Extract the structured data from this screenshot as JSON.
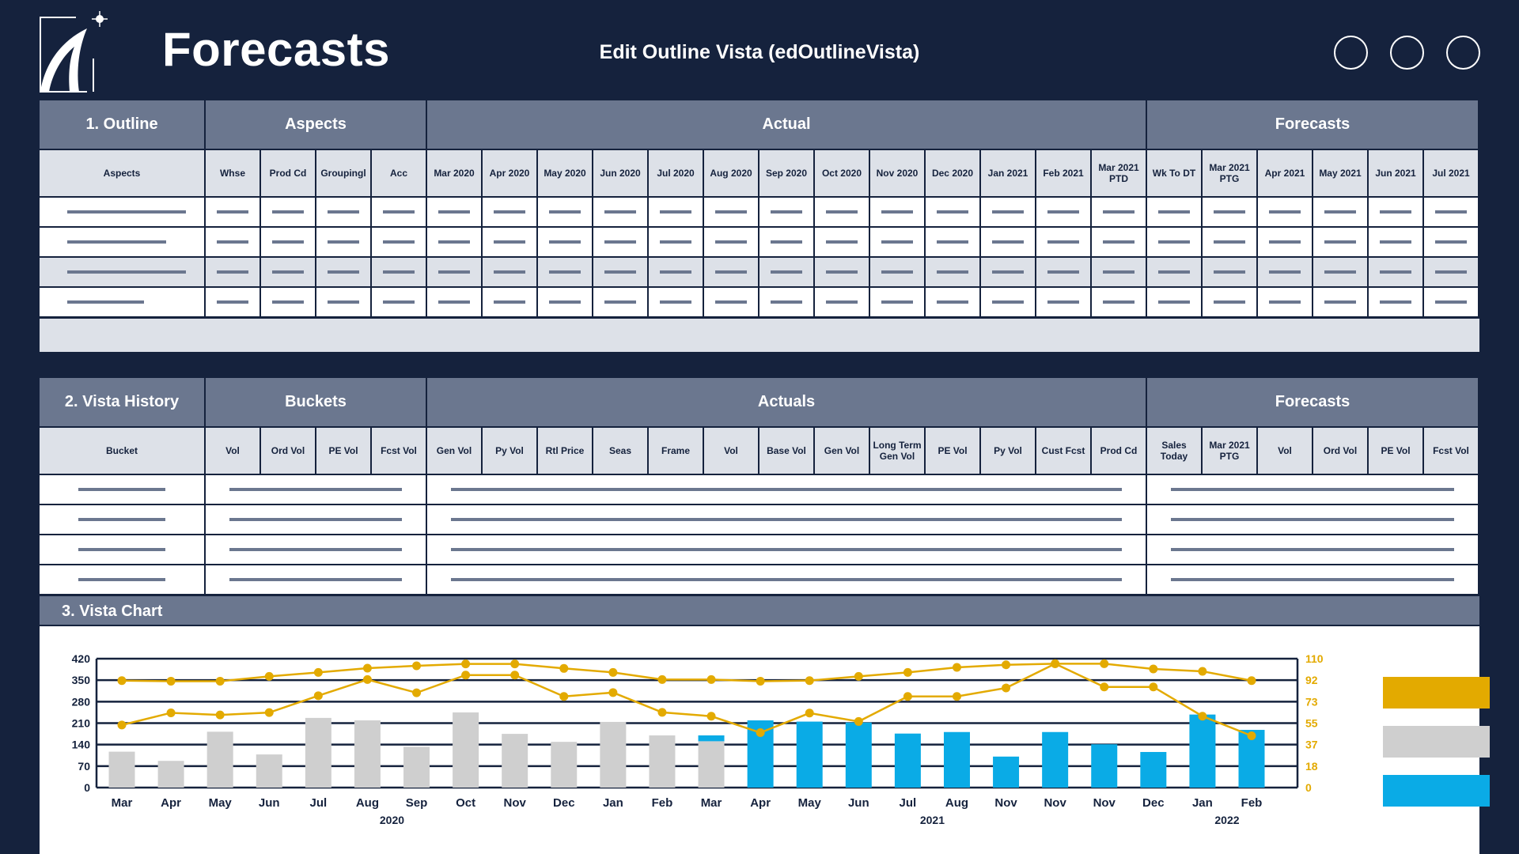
{
  "header": {
    "title": "Forecasts",
    "subtitle": "Edit Outline Vista (edOutlineVista)",
    "window_buttons": [
      "circle-1",
      "circle-2",
      "circle-3"
    ]
  },
  "outline": {
    "groups": [
      {
        "label": "1. Outline",
        "cols": 1
      },
      {
        "label": "Aspects",
        "cols": 4
      },
      {
        "label": "Actual",
        "cols": 13
      },
      {
        "label": "Forecasts",
        "cols": 6
      }
    ],
    "columns": [
      "Aspects",
      "Whse",
      "Prod Cd",
      "Groupingl",
      "Acc",
      "Mar 2020",
      "Apr 2020",
      "May 2020",
      "Jun 2020",
      "Jul 2020",
      "Aug 2020",
      "Sep 2020",
      "Oct 2020",
      "Nov 2020",
      "Dec 2020",
      "Jan 2021",
      "Feb 2021",
      "Mar 2021 PTD",
      "Wk To DT",
      "Mar 2021 PTG",
      "Apr 2021",
      "May 2021",
      "Jun 2021",
      "Jul 2021"
    ],
    "row_count": 4
  },
  "history": {
    "groups": [
      {
        "label": "2. Vista History",
        "cols": 1
      },
      {
        "label": "Buckets",
        "cols": 4
      },
      {
        "label": "Actuals",
        "cols": 13
      },
      {
        "label": "Forecasts",
        "cols": 6
      }
    ],
    "columns": [
      "Bucket",
      "Vol",
      "Ord Vol",
      "PE Vol",
      "Fcst Vol",
      "Gen Vol",
      "Py Vol",
      "Rtl Price",
      "Seas",
      "Frame",
      "Vol",
      "Base Vol",
      "Gen Vol",
      "Long Term Gen Vol",
      "PE Vol",
      "Py Vol",
      "Cust Fcst",
      "Prod Cd",
      "Sales Today",
      "Mar 2021 PTG",
      "Vol",
      "Ord Vol",
      "PE Vol",
      "Fcst Vol"
    ],
    "row_count": 4
  },
  "chart_section": {
    "title": "3. Vista Chart"
  },
  "chart_data": {
    "type": "bar",
    "categories": [
      "Mar",
      "Apr",
      "May",
      "Jun",
      "Jul",
      "Aug",
      "Sep",
      "Oct",
      "Nov",
      "Dec",
      "Jan",
      "Feb",
      "Mar",
      "Apr",
      "May",
      "Jun",
      "Jul",
      "Aug",
      "Nov",
      "Nov",
      "Nov",
      "Dec",
      "Jan",
      "Feb"
    ],
    "year_labels": [
      {
        "label": "2020",
        "at": 5.5
      },
      {
        "label": "2021",
        "at": 16.5
      },
      {
        "label": "2022",
        "at": 22.5
      }
    ],
    "left_axis": {
      "ticks": [
        "0",
        "70",
        "140",
        "210",
        "280",
        "350",
        "420"
      ],
      "range": [
        0,
        420
      ]
    },
    "right_axis": {
      "ticks": [
        "0",
        "18",
        "37",
        "55",
        "73",
        "92",
        "110"
      ],
      "range": [
        0,
        110
      ]
    },
    "grid": true,
    "legend_position": "right",
    "series": [
      {
        "key": "grey_bars",
        "type": "bar",
        "axis": "left",
        "color": "#cfcfcf",
        "values": [
          117,
          87,
          182,
          108,
          227,
          219,
          133,
          245,
          175,
          149,
          214,
          170,
          151,
          0,
          0,
          0,
          0,
          0,
          0,
          0,
          0,
          0,
          0,
          0
        ]
      },
      {
        "key": "blue_bars",
        "type": "bar",
        "axis": "left",
        "color": "#0aabe6",
        "values": [
          0,
          0,
          0,
          0,
          0,
          0,
          0,
          0,
          0,
          0,
          0,
          0,
          19,
          219,
          215,
          212,
          176,
          181,
          101,
          181,
          141,
          116,
          238,
          188
        ]
      },
      {
        "key": "upper_line",
        "type": "line",
        "axis": "right",
        "color": "#e3aa00",
        "values": [
          91.3,
          90.8,
          90.8,
          94.9,
          98.3,
          101.9,
          103.9,
          105.5,
          105.5,
          101.7,
          98.3,
          92.2,
          92.2,
          90.8,
          91.3,
          94.9,
          98.3,
          102.6,
          104.8,
          105.7,
          105.7,
          101.2,
          99.2,
          91.3
        ]
      },
      {
        "key": "lower_line",
        "type": "line",
        "axis": "right",
        "color": "#e3aa00",
        "values": [
          53.4,
          63.8,
          62.0,
          64.0,
          78.4,
          92.2,
          80.9,
          96.0,
          96.0,
          77.8,
          81.1,
          64.2,
          60.9,
          46.9,
          63.6,
          56.4,
          77.8,
          77.8,
          85.0,
          105.7,
          85.9,
          85.9,
          60.9,
          44.2
        ]
      }
    ],
    "legend_colors": [
      "#e3aa00",
      "#cfcfcf",
      "#0aabe6"
    ]
  },
  "colors": {
    "navy": "#15223d",
    "slate": "#6b778f",
    "light": "#dde1e8",
    "gold": "#e3aa00",
    "grey": "#cfcfcf",
    "blue": "#0aabe6"
  }
}
